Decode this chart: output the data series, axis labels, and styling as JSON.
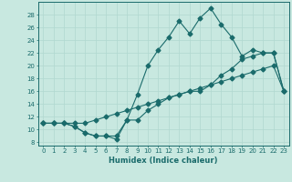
{
  "bg_color": "#c8e8e0",
  "line_color": "#1a6b6b",
  "grid_color": "#b0d8d0",
  "xlabel": "Humidex (Indice chaleur)",
  "xlim": [
    -0.5,
    23.5
  ],
  "ylim": [
    7.5,
    30
  ],
  "yticks": [
    8,
    10,
    12,
    14,
    16,
    18,
    20,
    22,
    24,
    26,
    28
  ],
  "xticks": [
    0,
    1,
    2,
    3,
    4,
    5,
    6,
    7,
    8,
    9,
    10,
    11,
    12,
    13,
    14,
    15,
    16,
    17,
    18,
    19,
    20,
    21,
    22,
    23
  ],
  "curve1_x": [
    0,
    1,
    2,
    3,
    4,
    5,
    6,
    7,
    8,
    9,
    10,
    11,
    12,
    13,
    14,
    15,
    16,
    17,
    18,
    19,
    20,
    21,
    22,
    23
  ],
  "curve1_y": [
    11,
    11,
    11,
    10.5,
    9.5,
    9,
    9,
    8.5,
    11.5,
    15.5,
    20,
    22.5,
    24.5,
    27,
    25,
    27.5,
    29,
    26.5,
    24.5,
    21.5,
    22.5,
    22,
    22,
    16
  ],
  "curve2_x": [
    0,
    1,
    2,
    3,
    4,
    5,
    6,
    7,
    8,
    9,
    10,
    11,
    12,
    13,
    14,
    15,
    16,
    17,
    18,
    19,
    20,
    21,
    22,
    23
  ],
  "curve2_y": [
    11,
    11,
    11,
    10.5,
    9.5,
    9,
    9,
    9,
    11.5,
    11.5,
    13,
    14,
    15,
    15.5,
    16,
    16,
    17,
    18.5,
    19.5,
    21,
    21.5,
    22,
    22,
    16
  ],
  "curve3_x": [
    0,
    1,
    2,
    3,
    4,
    5,
    6,
    7,
    8,
    9,
    10,
    11,
    12,
    13,
    14,
    15,
    16,
    17,
    18,
    19,
    20,
    21,
    22,
    23
  ],
  "curve3_y": [
    11,
    11,
    11,
    11,
    11,
    11.5,
    12,
    12.5,
    13,
    13.5,
    14,
    14.5,
    15,
    15.5,
    16,
    16.5,
    17,
    17.5,
    18,
    18.5,
    19,
    19.5,
    20,
    16
  ]
}
